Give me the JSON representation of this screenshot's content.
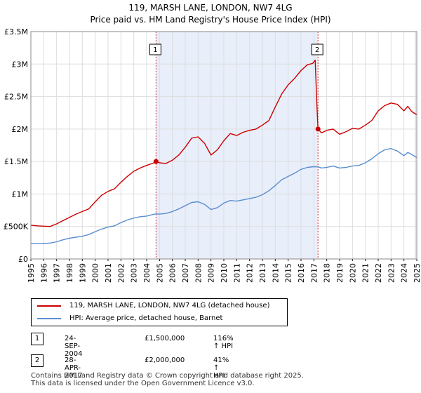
{
  "chart_data": {
    "type": "line",
    "title": "119, MARSH LANE, LONDON, NW7 4LG",
    "subtitle": "Price paid vs. HM Land Registry's House Price Index (HPI)",
    "x_range": [
      1995,
      2025
    ],
    "ylim": [
      0,
      3500000
    ],
    "y_ticks": [
      {
        "value": 0,
        "label": "£0"
      },
      {
        "value": 500000,
        "label": "£500K"
      },
      {
        "value": 1000000,
        "label": "£1M"
      },
      {
        "value": 1500000,
        "label": "£1.5M"
      },
      {
        "value": 2000000,
        "label": "£2M"
      },
      {
        "value": 2500000,
        "label": "£2.5M"
      },
      {
        "value": 3000000,
        "label": "£3M"
      },
      {
        "value": 3500000,
        "label": "£3.5M"
      }
    ],
    "x_ticks": [
      "1995",
      "1996",
      "1997",
      "1998",
      "1999",
      "2000",
      "2001",
      "2002",
      "2003",
      "2004",
      "2005",
      "2006",
      "2007",
      "2008",
      "2009",
      "2010",
      "2011",
      "2012",
      "2013",
      "2014",
      "2015",
      "2016",
      "2017",
      "2018",
      "2019",
      "2020",
      "2021",
      "2022",
      "2023",
      "2024",
      "2025"
    ],
    "shaded_period": [
      2004.73,
      2017.32
    ],
    "series": [
      {
        "name": "119, MARSH LANE, LONDON, NW7 4LG (detached house)",
        "color": "#cc0000",
        "points": [
          [
            1995.0,
            520000
          ],
          [
            1995.5,
            510000
          ],
          [
            1996.0,
            505000
          ],
          [
            1996.5,
            500000
          ],
          [
            1997.0,
            540000
          ],
          [
            1997.5,
            590000
          ],
          [
            1998.0,
            640000
          ],
          [
            1998.5,
            690000
          ],
          [
            1999.0,
            730000
          ],
          [
            1999.5,
            770000
          ],
          [
            2000.0,
            880000
          ],
          [
            2000.5,
            980000
          ],
          [
            2001.0,
            1040000
          ],
          [
            2001.5,
            1080000
          ],
          [
            2002.0,
            1180000
          ],
          [
            2002.5,
            1270000
          ],
          [
            2003.0,
            1350000
          ],
          [
            2003.5,
            1400000
          ],
          [
            2004.0,
            1440000
          ],
          [
            2004.5,
            1475000
          ],
          [
            2004.73,
            1500000
          ],
          [
            2005.0,
            1480000
          ],
          [
            2005.5,
            1470000
          ],
          [
            2006.0,
            1520000
          ],
          [
            2006.5,
            1600000
          ],
          [
            2007.0,
            1720000
          ],
          [
            2007.5,
            1860000
          ],
          [
            2008.0,
            1880000
          ],
          [
            2008.5,
            1780000
          ],
          [
            2009.0,
            1600000
          ],
          [
            2009.5,
            1680000
          ],
          [
            2010.0,
            1820000
          ],
          [
            2010.5,
            1930000
          ],
          [
            2011.0,
            1900000
          ],
          [
            2011.5,
            1950000
          ],
          [
            2012.0,
            1980000
          ],
          [
            2012.5,
            2000000
          ],
          [
            2013.0,
            2060000
          ],
          [
            2013.5,
            2130000
          ],
          [
            2014.0,
            2340000
          ],
          [
            2014.5,
            2540000
          ],
          [
            2015.0,
            2680000
          ],
          [
            2015.5,
            2780000
          ],
          [
            2016.0,
            2900000
          ],
          [
            2016.5,
            2990000
          ],
          [
            2016.9,
            3010000
          ],
          [
            2017.1,
            3060000
          ],
          [
            2017.25,
            2300000
          ],
          [
            2017.32,
            2000000
          ],
          [
            2017.6,
            1940000
          ],
          [
            2018.0,
            1980000
          ],
          [
            2018.5,
            2000000
          ],
          [
            2019.0,
            1920000
          ],
          [
            2019.5,
            1960000
          ],
          [
            2020.0,
            2010000
          ],
          [
            2020.5,
            2000000
          ],
          [
            2021.0,
            2060000
          ],
          [
            2021.5,
            2130000
          ],
          [
            2022.0,
            2280000
          ],
          [
            2022.5,
            2360000
          ],
          [
            2023.0,
            2400000
          ],
          [
            2023.5,
            2380000
          ],
          [
            2024.0,
            2280000
          ],
          [
            2024.3,
            2350000
          ],
          [
            2024.6,
            2270000
          ],
          [
            2025.0,
            2220000
          ]
        ]
      },
      {
        "name": "HPI: Average price, detached house, Barnet",
        "color": "#5b8ecf",
        "points": [
          [
            1995.0,
            240000
          ],
          [
            1995.5,
            235000
          ],
          [
            1996.0,
            238000
          ],
          [
            1996.5,
            245000
          ],
          [
            1997.0,
            265000
          ],
          [
            1997.5,
            295000
          ],
          [
            1998.0,
            320000
          ],
          [
            1998.5,
            335000
          ],
          [
            1999.0,
            350000
          ],
          [
            1999.5,
            375000
          ],
          [
            2000.0,
            420000
          ],
          [
            2000.5,
            460000
          ],
          [
            2001.0,
            490000
          ],
          [
            2001.5,
            510000
          ],
          [
            2002.0,
            560000
          ],
          [
            2002.5,
            600000
          ],
          [
            2003.0,
            630000
          ],
          [
            2003.5,
            650000
          ],
          [
            2004.0,
            660000
          ],
          [
            2004.5,
            685000
          ],
          [
            2004.73,
            694000
          ],
          [
            2005.0,
            690000
          ],
          [
            2005.5,
            700000
          ],
          [
            2006.0,
            730000
          ],
          [
            2006.5,
            770000
          ],
          [
            2007.0,
            820000
          ],
          [
            2007.5,
            870000
          ],
          [
            2008.0,
            880000
          ],
          [
            2008.5,
            840000
          ],
          [
            2009.0,
            760000
          ],
          [
            2009.5,
            790000
          ],
          [
            2010.0,
            860000
          ],
          [
            2010.5,
            900000
          ],
          [
            2011.0,
            890000
          ],
          [
            2011.5,
            910000
          ],
          [
            2012.0,
            930000
          ],
          [
            2012.5,
            950000
          ],
          [
            2013.0,
            990000
          ],
          [
            2013.5,
            1050000
          ],
          [
            2014.0,
            1130000
          ],
          [
            2014.5,
            1220000
          ],
          [
            2015.0,
            1270000
          ],
          [
            2015.5,
            1320000
          ],
          [
            2016.0,
            1380000
          ],
          [
            2016.5,
            1410000
          ],
          [
            2017.0,
            1420000
          ],
          [
            2017.32,
            1418000
          ],
          [
            2017.6,
            1400000
          ],
          [
            2018.0,
            1410000
          ],
          [
            2018.5,
            1430000
          ],
          [
            2019.0,
            1400000
          ],
          [
            2019.5,
            1410000
          ],
          [
            2020.0,
            1430000
          ],
          [
            2020.5,
            1440000
          ],
          [
            2021.0,
            1480000
          ],
          [
            2021.5,
            1540000
          ],
          [
            2022.0,
            1620000
          ],
          [
            2022.5,
            1680000
          ],
          [
            2023.0,
            1700000
          ],
          [
            2023.5,
            1660000
          ],
          [
            2024.0,
            1590000
          ],
          [
            2024.3,
            1640000
          ],
          [
            2024.6,
            1610000
          ],
          [
            2025.0,
            1560000
          ]
        ]
      }
    ],
    "sales": [
      {
        "id": "1",
        "x": 2004.73,
        "y": 1500000
      },
      {
        "id": "2",
        "x": 2017.32,
        "y": 2000000
      }
    ]
  },
  "legend": {
    "property_label": "119, MARSH LANE, LONDON, NW7 4LG (detached house)",
    "hpi_label": "HPI: Average price, detached house, Barnet",
    "property_color": "#cc0000",
    "hpi_color": "#5b8ecf"
  },
  "sales_table": [
    {
      "id": "1",
      "date": "24-SEP-2004",
      "price": "£1,500,000",
      "hpi": "116% ↑ HPI"
    },
    {
      "id": "2",
      "date": "28-APR-2017",
      "price": "£2,000,000",
      "hpi": "41% ↑ HPI"
    }
  ],
  "footer": {
    "line1": "Contains HM Land Registry data © Crown copyright and database right 2025.",
    "line2": "This data is licensed under the Open Government Licence v3.0."
  }
}
